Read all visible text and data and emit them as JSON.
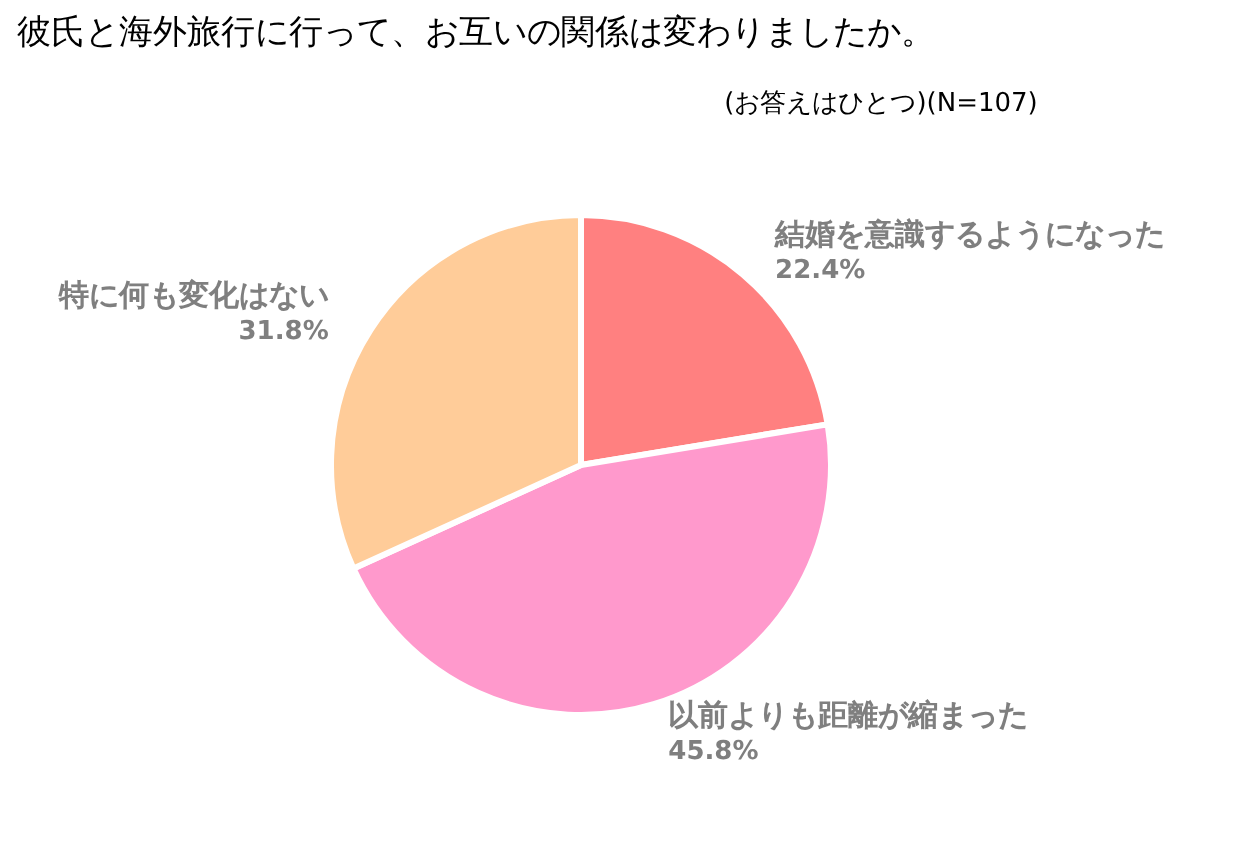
{
  "chart_data": {
    "type": "pie",
    "title": "彼氏と海外旅行に行って、お互いの関係は変わりましたか。",
    "subtitle": "(お答えはひとつ)(N=107)",
    "categories": [
      "結婚を意識するようになった",
      "以前よりも距離が縮まった",
      "特に何も変化はない"
    ],
    "values": [
      22.4,
      45.8,
      31.8
    ],
    "colors": [
      "#ff8080",
      "#ff99cc",
      "#ffcc99"
    ],
    "value_labels": [
      "22.4%",
      "45.8%",
      "31.8%"
    ]
  }
}
